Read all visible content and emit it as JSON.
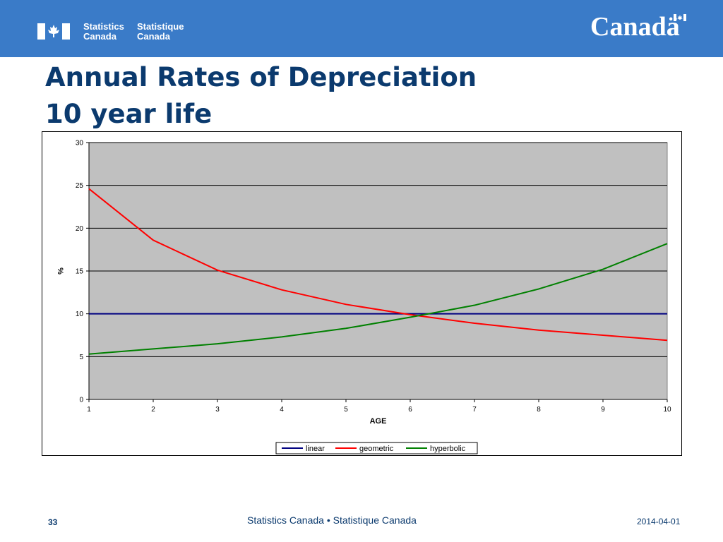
{
  "header": {
    "org_en": [
      "Statistics",
      "Canada"
    ],
    "org_fr": [
      "Statistique",
      "Canada"
    ],
    "wordmark": "Canadä"
  },
  "slide": {
    "title_line1": "Annual Rates of Depreciation",
    "title_line2": "10 year life"
  },
  "chart_data": {
    "type": "line",
    "xlabel": "AGE",
    "ylabel": "%",
    "x": [
      1,
      2,
      3,
      4,
      5,
      6,
      7,
      8,
      9,
      10
    ],
    "xticks": [
      "1",
      "2",
      "3",
      "4",
      "5",
      "6",
      "7",
      "8",
      "9",
      "10"
    ],
    "ylim": [
      0,
      30
    ],
    "yticks": [
      "0",
      "5",
      "10",
      "15",
      "20",
      "25",
      "30"
    ],
    "grid": true,
    "plot_background": "#c0c0c0",
    "legend_position": "bottom-center",
    "series": [
      {
        "name": "linear",
        "color": "#000080",
        "values": [
          10,
          10,
          10,
          10,
          10,
          10,
          10,
          10,
          10,
          10
        ]
      },
      {
        "name": "geometric",
        "color": "#ff0000",
        "values": [
          24.6,
          18.6,
          15.1,
          12.8,
          11.1,
          9.9,
          8.9,
          8.1,
          7.5,
          6.9
        ]
      },
      {
        "name": "hyperbolic",
        "color": "#008000",
        "values": [
          5.3,
          5.9,
          6.5,
          7.3,
          8.3,
          9.6,
          11.0,
          12.9,
          15.2,
          18.2
        ]
      }
    ]
  },
  "footer": {
    "center": "Statistics Canada • Statistique Canada",
    "page_number": "33",
    "date": "2014-04-01"
  },
  "colors": {
    "banner": "#3a7bc8",
    "title": "#0b3a6e"
  }
}
